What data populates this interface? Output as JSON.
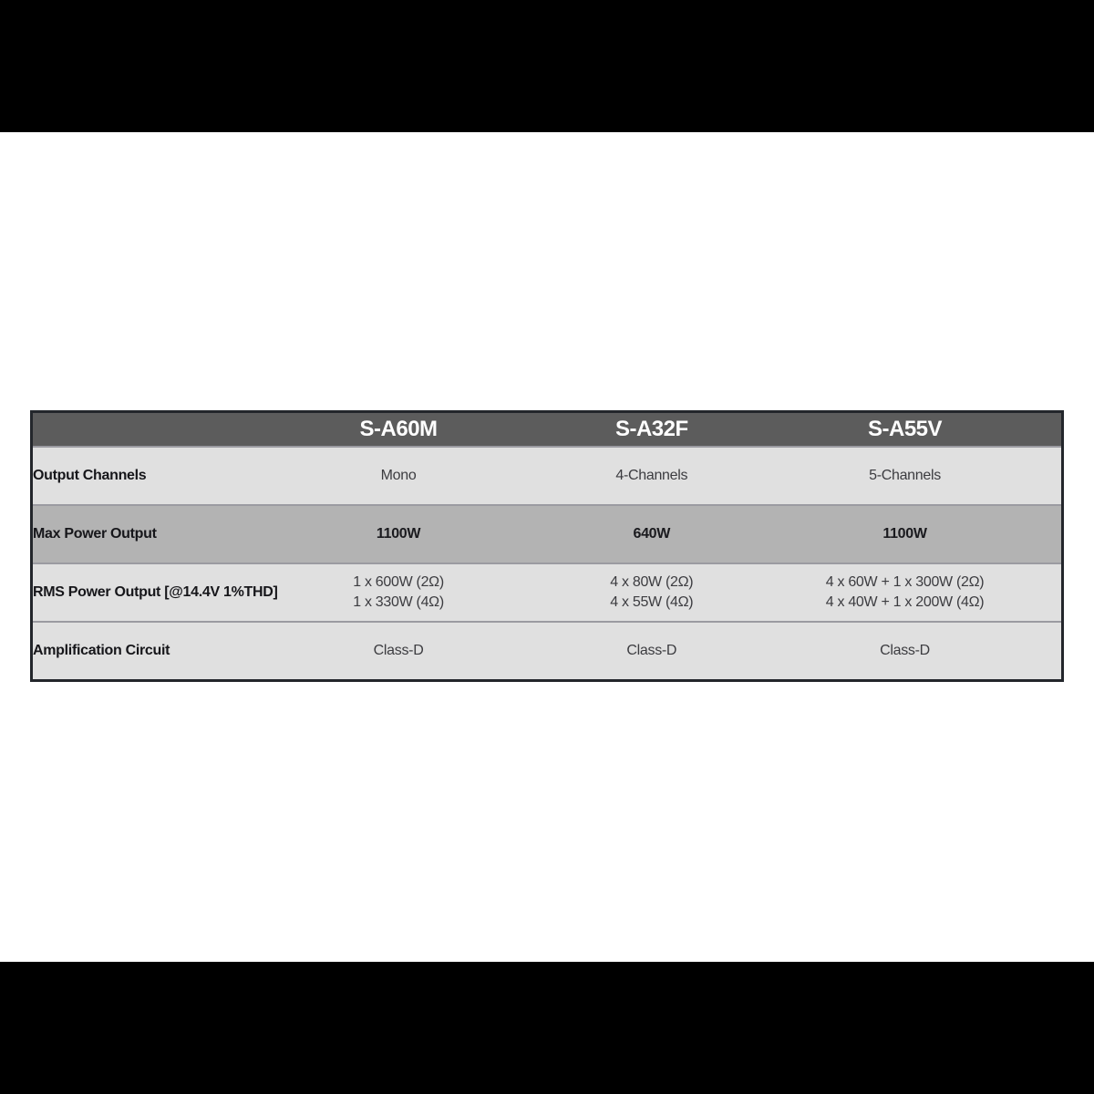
{
  "colors": {
    "letterbox": "#000000",
    "page_background": "#ffffff",
    "header_background": "#5c5c5c",
    "header_text": "#ffffff",
    "row_light": "#e0e0e0",
    "row_dark": "#b3b3b3",
    "row_separator": "#9b9ba1",
    "table_border": "#23262b",
    "label_text": "#16161a",
    "value_text": "#3c3c40"
  },
  "spec_table": {
    "column_headers": [
      "S-A60M",
      "S-A32F",
      "S-A55V"
    ],
    "rows": [
      {
        "label": "Output Channels",
        "values": [
          [
            "Mono"
          ],
          [
            "4-Channels"
          ],
          [
            "5-Channels"
          ]
        ],
        "shade": "light",
        "emphasis": false
      },
      {
        "label": "Max Power Output",
        "values": [
          [
            "1100W"
          ],
          [
            "640W"
          ],
          [
            "1100W"
          ]
        ],
        "shade": "dark",
        "emphasis": true
      },
      {
        "label": "RMS Power Output [@14.4V 1%THD]",
        "values": [
          [
            "1 x 600W (2Ω)",
            "1 x 330W (4Ω)"
          ],
          [
            "4 x 80W (2Ω)",
            "4 x 55W (4Ω)"
          ],
          [
            "4 x 60W + 1 x 300W (2Ω)",
            "4 x 40W + 1 x 200W (4Ω)"
          ]
        ],
        "shade": "light",
        "emphasis": false
      },
      {
        "label": "Amplification Circuit",
        "values": [
          [
            "Class-D"
          ],
          [
            "Class-D"
          ],
          [
            "Class-D"
          ]
        ],
        "shade": "light",
        "emphasis": false
      }
    ]
  }
}
